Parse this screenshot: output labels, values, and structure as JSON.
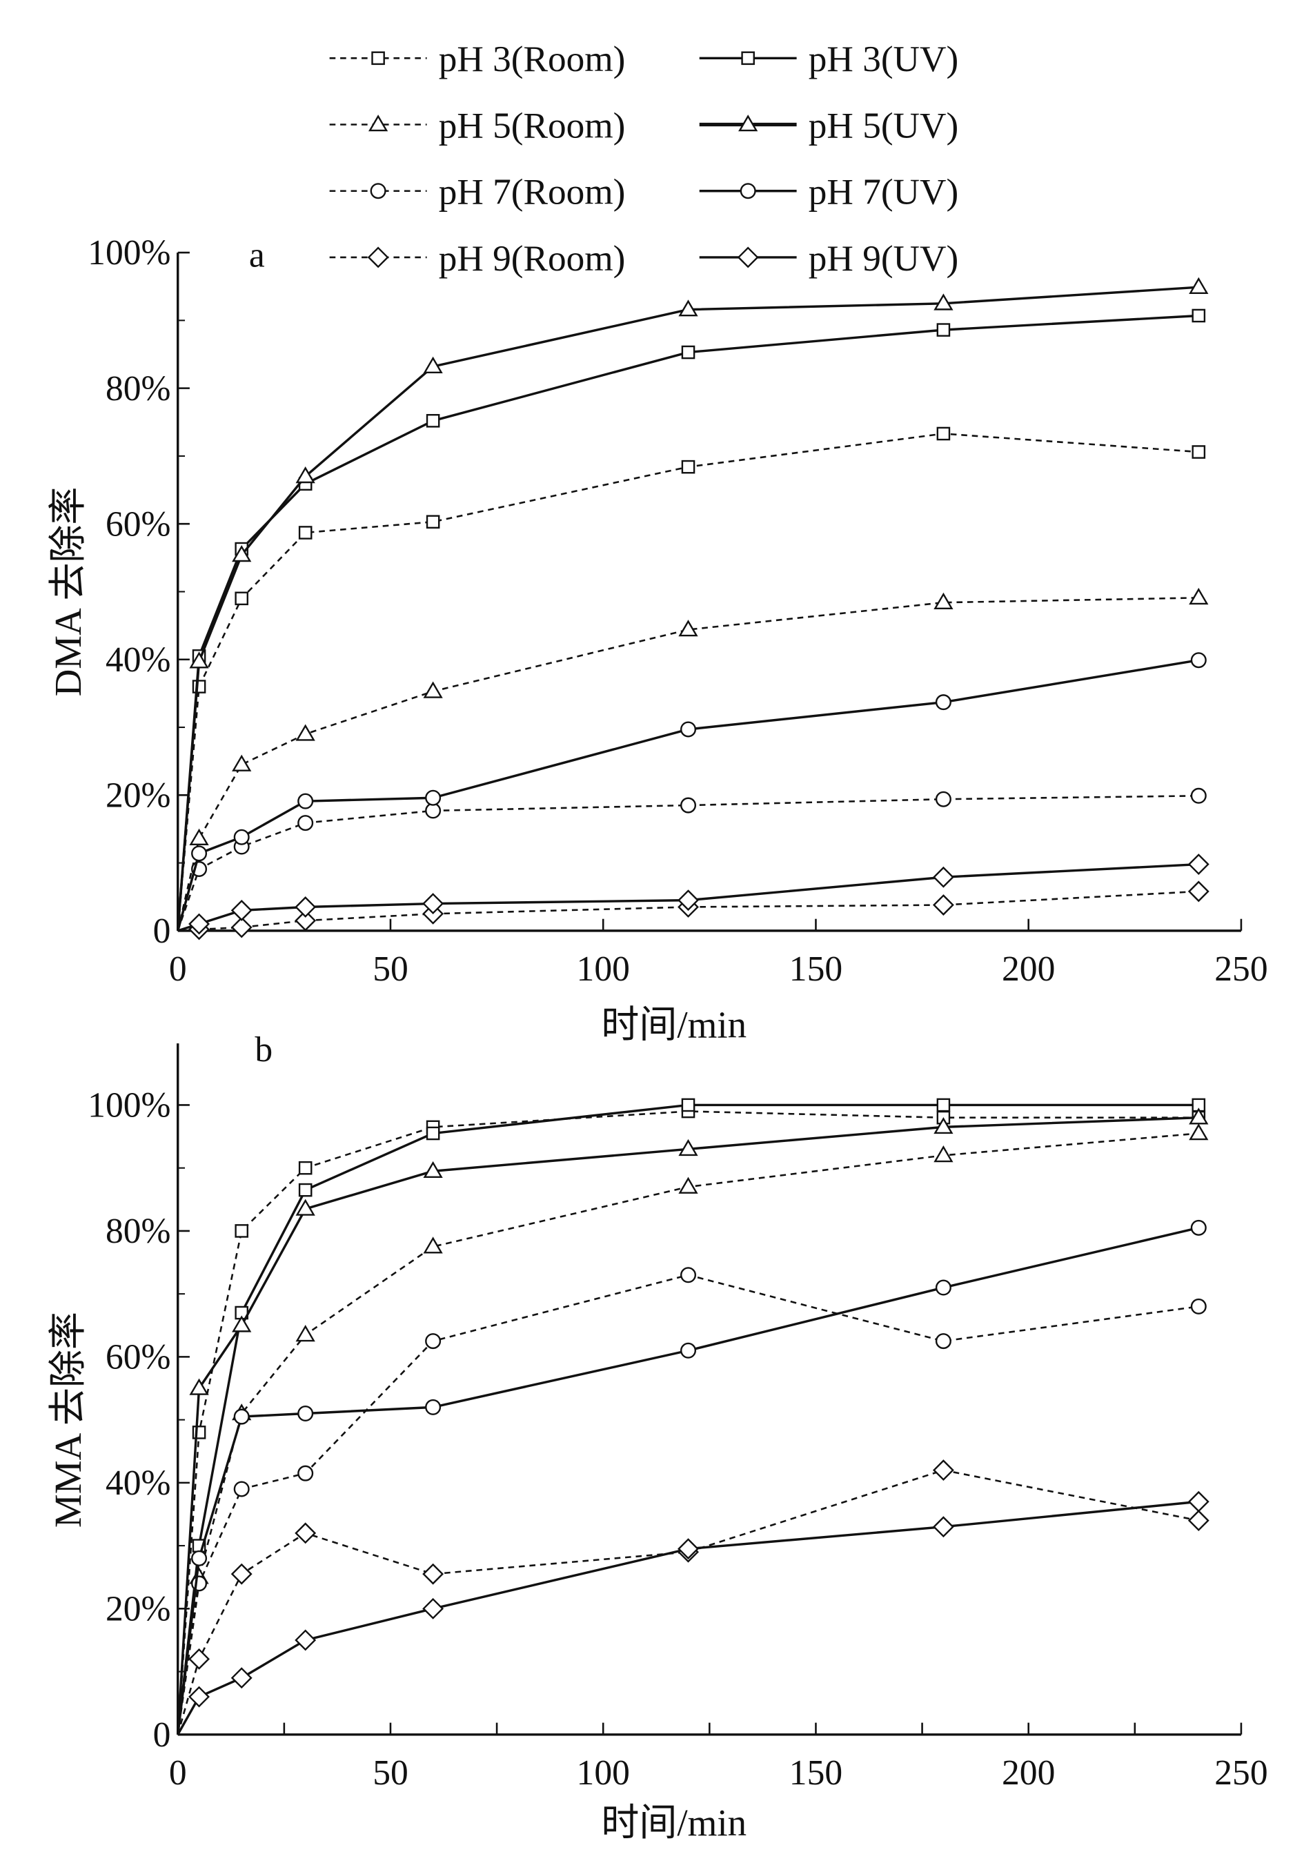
{
  "chart_data": [
    {
      "type": "line",
      "panel_label": "a",
      "xlabel": "时间/min",
      "ylabel": "DMA 去除率",
      "xlim": [
        0,
        250
      ],
      "ylim": [
        0,
        100
      ],
      "xticks": [
        0,
        50,
        100,
        150,
        200,
        250
      ],
      "xtick_labels": [
        "0",
        "50",
        "100",
        "150",
        "200",
        "250"
      ],
      "yticks": [
        0,
        20,
        40,
        60,
        80,
        100
      ],
      "ytick_labels": [
        "0",
        "20%",
        "40%",
        "60%",
        "80%",
        "100%"
      ],
      "x": [
        0,
        5,
        15,
        30,
        60,
        120,
        180,
        240
      ],
      "series": [
        {
          "name": "pH 3(Room)",
          "marker": "square",
          "dashed": true,
          "values": [
            0,
            36,
            49,
            58.7,
            60.3,
            68.4,
            73.3,
            70.6
          ]
        },
        {
          "name": "pH 3(UV)",
          "marker": "square",
          "dashed": false,
          "values": [
            0,
            40.5,
            56.3,
            65.9,
            75.2,
            85.3,
            88.6,
            90.7
          ]
        },
        {
          "name": "pH 5(Room)",
          "marker": "triangle",
          "dashed": true,
          "values": [
            0,
            13.6,
            24.5,
            29,
            35.3,
            44.4,
            48.4,
            49.1
          ]
        },
        {
          "name": "pH 5(UV)",
          "marker": "triangle",
          "dashed": false,
          "values": [
            0,
            39.7,
            55.4,
            67,
            83.2,
            91.6,
            92.5,
            94.9
          ]
        },
        {
          "name": "pH 7(Room)",
          "marker": "circle",
          "dashed": true,
          "values": [
            0,
            9.1,
            12.4,
            15.9,
            17.7,
            18.5,
            19.4,
            19.9
          ]
        },
        {
          "name": "pH 7(UV)",
          "marker": "circle",
          "dashed": false,
          "values": [
            0,
            11.4,
            13.8,
            19.1,
            19.6,
            29.7,
            33.7,
            39.9
          ]
        },
        {
          "name": "pH 9(Room)",
          "marker": "diamond",
          "dashed": true,
          "values": [
            0,
            0.2,
            0.5,
            1.5,
            2.5,
            3.5,
            3.8,
            5.8
          ]
        },
        {
          "name": "pH 9(UV)",
          "marker": "diamond",
          "dashed": false,
          "values": [
            0,
            1,
            3,
            3.5,
            4,
            4.5,
            7.9,
            9.8
          ]
        }
      ],
      "legend_placement": "top"
    },
    {
      "type": "line",
      "panel_label": "b",
      "xlabel": "时间/min",
      "ylabel": "MMA 去除率",
      "xlim": [
        0,
        250
      ],
      "ylim": [
        0,
        110
      ],
      "xticks": [
        0,
        50,
        100,
        150,
        200,
        250
      ],
      "xtick_labels": [
        "0",
        "50",
        "100",
        "150",
        "200",
        "250"
      ],
      "yticks": [
        0,
        20,
        40,
        60,
        80,
        100
      ],
      "ytick_labels": [
        "0",
        "20%",
        "40%",
        "60%",
        "80%",
        "100%"
      ],
      "x": [
        0,
        5,
        15,
        30,
        60,
        120,
        180,
        240
      ],
      "series": [
        {
          "name": "pH 3(Room)",
          "marker": "square",
          "dashed": true,
          "values": [
            0,
            48,
            80,
            90,
            96.5,
            99,
            98,
            98
          ]
        },
        {
          "name": "pH 3(UV)",
          "marker": "square",
          "dashed": false,
          "values": [
            0,
            30,
            67,
            86.5,
            95.5,
            100,
            100,
            100
          ]
        },
        {
          "name": "pH 5(Room)",
          "marker": "triangle",
          "dashed": true,
          "values": [
            0,
            25,
            51,
            63.5,
            77.5,
            87,
            92,
            95.5
          ]
        },
        {
          "name": "pH 5(UV)",
          "marker": "triangle",
          "dashed": false,
          "values": [
            0,
            55,
            65,
            83.5,
            89.5,
            93,
            96.5,
            98
          ]
        },
        {
          "name": "pH 7(Room)",
          "marker": "circle",
          "dashed": true,
          "values": [
            0,
            24,
            39,
            41.5,
            62.5,
            73,
            62.5,
            68
          ]
        },
        {
          "name": "pH 7(UV)",
          "marker": "circle",
          "dashed": false,
          "values": [
            0,
            28,
            50.5,
            51,
            52,
            61,
            71,
            80.5
          ]
        },
        {
          "name": "pH 9(Room)",
          "marker": "diamond",
          "dashed": true,
          "values": [
            0,
            12,
            25.5,
            32,
            25.5,
            29,
            42,
            34
          ]
        },
        {
          "name": "pH 9(UV)",
          "marker": "diamond",
          "dashed": false,
          "values": [
            0,
            6,
            9,
            15,
            20,
            29.5,
            33,
            37
          ]
        }
      ]
    }
  ],
  "legend": [
    "pH 3(Room)",
    "pH 3(UV)",
    "pH 5(Room)",
    "pH 5(UV)",
    "pH 7(Room)",
    "pH 7(UV)",
    "pH 9(Room)",
    "pH 9(UV)"
  ]
}
